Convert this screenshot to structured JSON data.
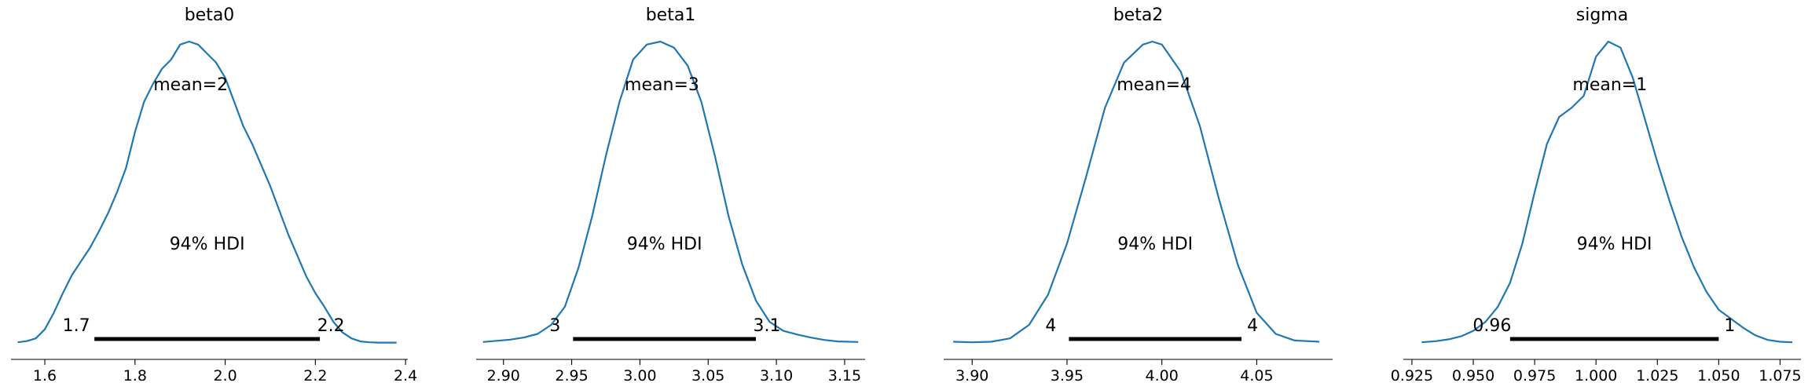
{
  "chart_data": [
    {
      "type": "line",
      "title": "beta0",
      "mean_label": "mean=2",
      "hdi_label": "94% HDI",
      "hdi_low": 1.71,
      "hdi_high": 2.21,
      "hdi_low_label": "1.7",
      "hdi_high_label": "2.2",
      "xlim": [
        1.525,
        2.405
      ],
      "ticks": [
        1.6,
        1.8,
        2.0,
        2.2,
        2.4
      ],
      "tick_labels": [
        "1.6",
        "1.8",
        "2.0",
        "2.2",
        "2.4"
      ],
      "x": [
        1.54,
        1.56,
        1.58,
        1.6,
        1.62,
        1.64,
        1.66,
        1.68,
        1.7,
        1.72,
        1.74,
        1.76,
        1.78,
        1.8,
        1.82,
        1.84,
        1.86,
        1.88,
        1.9,
        1.92,
        1.94,
        1.96,
        1.98,
        2.0,
        2.02,
        2.04,
        2.06,
        2.08,
        2.1,
        2.12,
        2.14,
        2.16,
        2.18,
        2.2,
        2.22,
        2.24,
        2.26,
        2.28,
        2.3,
        2.32,
        2.34,
        2.36,
        2.38
      ],
      "y": [
        0.002,
        0.006,
        0.015,
        0.045,
        0.1,
        0.165,
        0.225,
        0.27,
        0.315,
        0.37,
        0.43,
        0.5,
        0.58,
        0.7,
        0.8,
        0.86,
        0.91,
        0.94,
        0.99,
        1.0,
        0.99,
        0.96,
        0.93,
        0.88,
        0.8,
        0.72,
        0.66,
        0.59,
        0.52,
        0.44,
        0.36,
        0.29,
        0.22,
        0.165,
        0.12,
        0.07,
        0.035,
        0.015,
        0.005,
        0.002,
        0.001,
        0.001,
        0.001
      ],
      "color": "#1f77b4"
    },
    {
      "type": "line",
      "title": "beta1",
      "mean_label": "mean=3",
      "hdi_label": "94% HDI",
      "hdi_low": 2.951,
      "hdi_high": 3.085,
      "hdi_low_label": "3",
      "hdi_high_label": "3.1",
      "xlim": [
        2.88,
        3.165
      ],
      "ticks": [
        2.9,
        2.95,
        3.0,
        3.05,
        3.1,
        3.15
      ],
      "tick_labels": [
        "2.90",
        "2.95",
        "3.00",
        "3.05",
        "3.10",
        "3.15"
      ],
      "x": [
        2.885,
        2.895,
        2.905,
        2.915,
        2.925,
        2.935,
        2.945,
        2.955,
        2.965,
        2.975,
        2.985,
        2.995,
        3.005,
        3.015,
        3.025,
        3.035,
        3.045,
        3.055,
        3.065,
        3.075,
        3.085,
        3.095,
        3.105,
        3.115,
        3.125,
        3.135,
        3.145,
        3.16
      ],
      "y": [
        0.003,
        0.007,
        0.011,
        0.018,
        0.03,
        0.06,
        0.12,
        0.25,
        0.42,
        0.62,
        0.8,
        0.94,
        0.99,
        1.0,
        0.98,
        0.92,
        0.8,
        0.62,
        0.42,
        0.26,
        0.14,
        0.07,
        0.04,
        0.028,
        0.018,
        0.01,
        0.005,
        0.003
      ],
      "color": "#1f77b4"
    },
    {
      "type": "line",
      "title": "beta2",
      "mean_label": "mean=4",
      "hdi_label": "94% HDI",
      "hdi_low": 3.951,
      "hdi_high": 4.042,
      "hdi_low_label": "4",
      "hdi_high_label": "4",
      "xlim": [
        3.885,
        4.09
      ],
      "ticks": [
        3.9,
        3.95,
        4.0,
        4.05
      ],
      "tick_labels": [
        "3.90",
        "3.95",
        "4.00",
        "4.05"
      ],
      "x": [
        3.89,
        3.9,
        3.91,
        3.92,
        3.93,
        3.94,
        3.95,
        3.96,
        3.97,
        3.98,
        3.99,
        3.995,
        4.0,
        4.01,
        4.02,
        4.03,
        4.04,
        4.05,
        4.06,
        4.07,
        4.083
      ],
      "y": [
        0.004,
        0.002,
        0.004,
        0.015,
        0.06,
        0.16,
        0.33,
        0.55,
        0.78,
        0.93,
        0.99,
        1.0,
        0.99,
        0.9,
        0.72,
        0.48,
        0.26,
        0.1,
        0.03,
        0.008,
        0.004
      ],
      "color": "#1f77b4"
    },
    {
      "type": "line",
      "title": "sigma",
      "mean_label": "mean=1",
      "hdi_label": "94% HDI",
      "hdi_low": 0.965,
      "hdi_high": 1.05,
      "hdi_low_label": "0.96",
      "hdi_high_label": "1",
      "xlim": [
        0.9215,
        1.0835
      ],
      "ticks": [
        0.925,
        0.95,
        0.975,
        1.0,
        1.025,
        1.05,
        1.075
      ],
      "tick_labels": [
        "0.925",
        "0.950",
        "0.975",
        "1.000",
        "1.025",
        "1.050",
        "1.075"
      ],
      "x": [
        0.929,
        0.935,
        0.94,
        0.945,
        0.95,
        0.955,
        0.96,
        0.965,
        0.97,
        0.975,
        0.98,
        0.985,
        0.99,
        0.995,
        1.0,
        1.005,
        1.01,
        1.015,
        1.02,
        1.025,
        1.03,
        1.035,
        1.04,
        1.045,
        1.05,
        1.055,
        1.06,
        1.065,
        1.07,
        1.075,
        1.08
      ],
      "y": [
        0.002,
        0.006,
        0.012,
        0.022,
        0.04,
        0.07,
        0.12,
        0.2,
        0.33,
        0.5,
        0.66,
        0.75,
        0.78,
        0.82,
        0.95,
        1.0,
        0.98,
        0.88,
        0.74,
        0.6,
        0.47,
        0.35,
        0.25,
        0.17,
        0.11,
        0.08,
        0.05,
        0.025,
        0.01,
        0.004,
        0.002
      ],
      "color": "#1f77b4"
    }
  ]
}
